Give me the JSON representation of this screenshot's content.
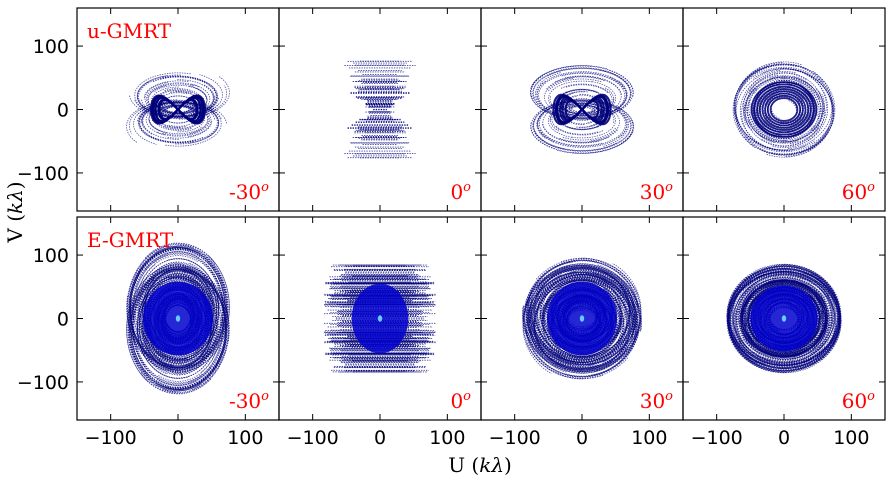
{
  "chart_data": {
    "type": "scatter",
    "description_note": "",
    "rows": [
      {
        "array_label": "u-GMRT",
        "panels": [
          {
            "declination": "-30",
            "shape": "figure8_elliptical_tracks"
          },
          {
            "declination": "0",
            "shape": "horizontal_tracks"
          },
          {
            "declination": "30",
            "shape": "figure8_elliptical_tracks"
          },
          {
            "declination": "60",
            "shape": "circular_tracks"
          }
        ]
      },
      {
        "array_label": "E-GMRT",
        "panels": [
          {
            "declination": "-30",
            "shape": "dense_hourglass_tracks"
          },
          {
            "declination": "0",
            "shape": "dense_horizontal_tracks"
          },
          {
            "declination": "30",
            "shape": "dense_elliptical_tracks"
          },
          {
            "declination": "60",
            "shape": "dense_circular_tracks"
          }
        ]
      }
    ],
    "dec_superscript": "o",
    "xlabel": "U (kλ)",
    "ylabel": "V (kλ)",
    "xlim": [
      -150,
      150
    ],
    "ylim": [
      -160,
      160
    ],
    "xticks": [
      -100,
      0,
      100
    ],
    "yticks": [
      -100,
      0,
      100
    ],
    "xtick_labels": [
      "−100",
      "0",
      "100"
    ],
    "ytick_labels": [
      "100",
      "0",
      "−100"
    ],
    "colors": {
      "tracks": "#00007a",
      "core": "#0000cc",
      "center": "#66ccff",
      "label": "#ff0000",
      "axes": "#000000"
    }
  }
}
